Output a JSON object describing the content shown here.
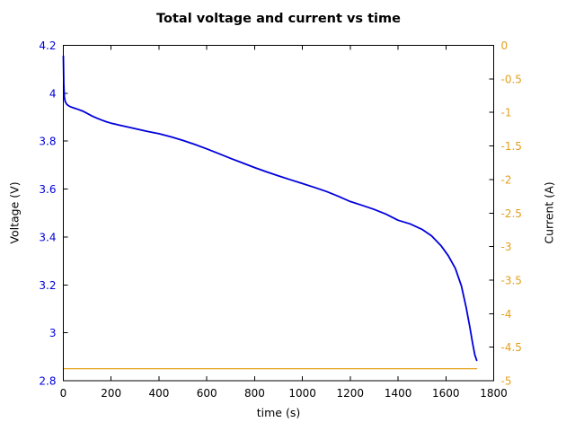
{
  "chart_data": {
    "type": "line",
    "title": "Total voltage and current vs time",
    "xlabel": "time (s)",
    "ylabel_left": "Voltage (V)",
    "ylabel_right": "Current (A)",
    "grid": false,
    "legend": false,
    "x_range": [
      0,
      1800
    ],
    "x_tick_values": [
      0,
      200,
      400,
      600,
      800,
      1000,
      1200,
      1400,
      1600,
      1800
    ],
    "x_tick_labels": [
      "0",
      "200",
      "400",
      "600",
      "800",
      "1000",
      "1200",
      "1400",
      "1600",
      "1800"
    ],
    "y_left_range": [
      2.8,
      4.2
    ],
    "y_left_tick_values": [
      2.8,
      3.0,
      3.2,
      3.4,
      3.6,
      3.8,
      4.0,
      4.2
    ],
    "y_left_tick_labels": [
      "2.8",
      "3",
      "3.2",
      "3.4",
      "3.6",
      "3.8",
      "4",
      "4.2"
    ],
    "y_right_range": [
      -5,
      0
    ],
    "y_right_tick_values": [
      -5,
      -4.5,
      -4,
      -3.5,
      -3,
      -2.5,
      -2,
      -1.5,
      -1,
      -0.5,
      0
    ],
    "y_right_tick_labels": [
      "-5",
      "-4.5",
      "-4",
      "-3.5",
      "-3",
      "-2.5",
      "-2",
      "-1.5",
      "-1",
      "-0.5",
      "0"
    ],
    "colors": {
      "voltage": "#0000dd",
      "current": "#e4a01b",
      "axis": "#000000",
      "background": "#ffffff"
    },
    "series": [
      {
        "name": "Total voltage",
        "axis": "left",
        "color_key": "voltage",
        "line_width": 1.8,
        "points": [
          [
            0,
            4.155
          ],
          [
            2,
            4.04
          ],
          [
            4,
            3.985
          ],
          [
            8,
            3.965
          ],
          [
            15,
            3.953
          ],
          [
            25,
            3.946
          ],
          [
            40,
            3.94
          ],
          [
            60,
            3.933
          ],
          [
            80,
            3.926
          ],
          [
            100,
            3.916
          ],
          [
            120,
            3.905
          ],
          [
            140,
            3.896
          ],
          [
            160,
            3.888
          ],
          [
            180,
            3.881
          ],
          [
            200,
            3.875
          ],
          [
            230,
            3.868
          ],
          [
            260,
            3.861
          ],
          [
            300,
            3.852
          ],
          [
            350,
            3.841
          ],
          [
            400,
            3.831
          ],
          [
            450,
            3.818
          ],
          [
            500,
            3.803
          ],
          [
            550,
            3.786
          ],
          [
            600,
            3.768
          ],
          [
            650,
            3.748
          ],
          [
            700,
            3.728
          ],
          [
            750,
            3.709
          ],
          [
            800,
            3.69
          ],
          [
            850,
            3.672
          ],
          [
            900,
            3.655
          ],
          [
            950,
            3.639
          ],
          [
            1000,
            3.623
          ],
          [
            1050,
            3.607
          ],
          [
            1100,
            3.59
          ],
          [
            1150,
            3.57
          ],
          [
            1200,
            3.548
          ],
          [
            1250,
            3.532
          ],
          [
            1300,
            3.515
          ],
          [
            1350,
            3.495
          ],
          [
            1400,
            3.47
          ],
          [
            1450,
            3.455
          ],
          [
            1500,
            3.432
          ],
          [
            1540,
            3.405
          ],
          [
            1580,
            3.363
          ],
          [
            1610,
            3.322
          ],
          [
            1640,
            3.268
          ],
          [
            1665,
            3.195
          ],
          [
            1685,
            3.105
          ],
          [
            1700,
            3.025
          ],
          [
            1712,
            2.955
          ],
          [
            1721,
            2.908
          ],
          [
            1729,
            2.885
          ]
        ]
      },
      {
        "name": "Total current",
        "axis": "right",
        "color_key": "current",
        "line_width": 1.2,
        "points": [
          [
            0,
            -4.82
          ],
          [
            1729,
            -4.82
          ]
        ]
      }
    ]
  }
}
